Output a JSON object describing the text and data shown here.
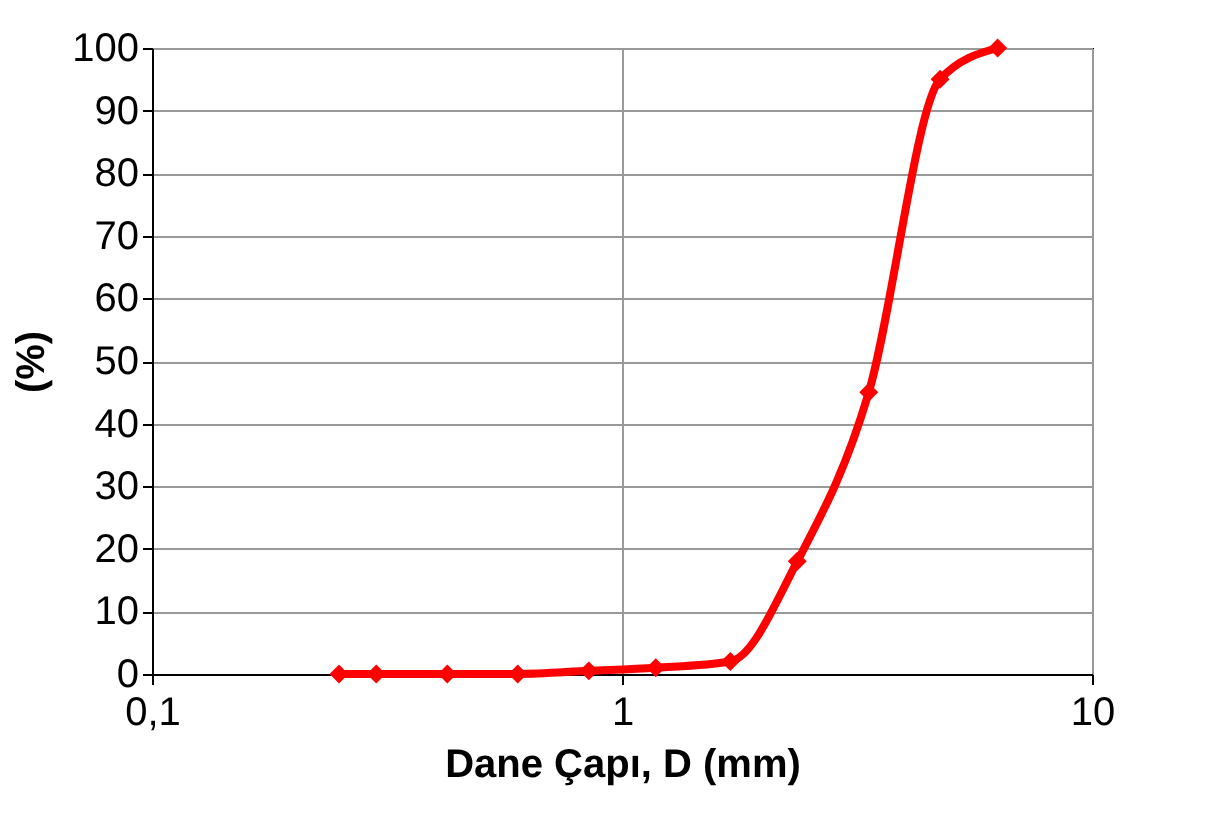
{
  "chart_data": {
    "type": "line",
    "xlabel": "Dane Çapı, D (mm)",
    "ylabel": "(%)",
    "log": "x",
    "x": [
      0.25,
      0.3,
      0.425,
      0.6,
      0.85,
      1.18,
      1.7,
      2.36,
      3.35,
      4.75,
      6.3
    ],
    "series": [
      {
        "color": "#ff0000",
        "values": [
          0,
          0,
          0,
          0,
          0.5,
          1,
          2,
          18,
          45,
          95,
          100
        ]
      }
    ],
    "xlim": [
      0.1,
      10
    ],
    "xticks": [
      {
        "value": 0.1,
        "label": "0,1"
      },
      1,
      10
    ],
    "ylim": [
      0,
      100
    ],
    "yticks": [
      0,
      10,
      20,
      30,
      40,
      50,
      60,
      70,
      80,
      90,
      100
    ],
    "grid": true,
    "marker": "diamond",
    "line_style": "solid"
  }
}
